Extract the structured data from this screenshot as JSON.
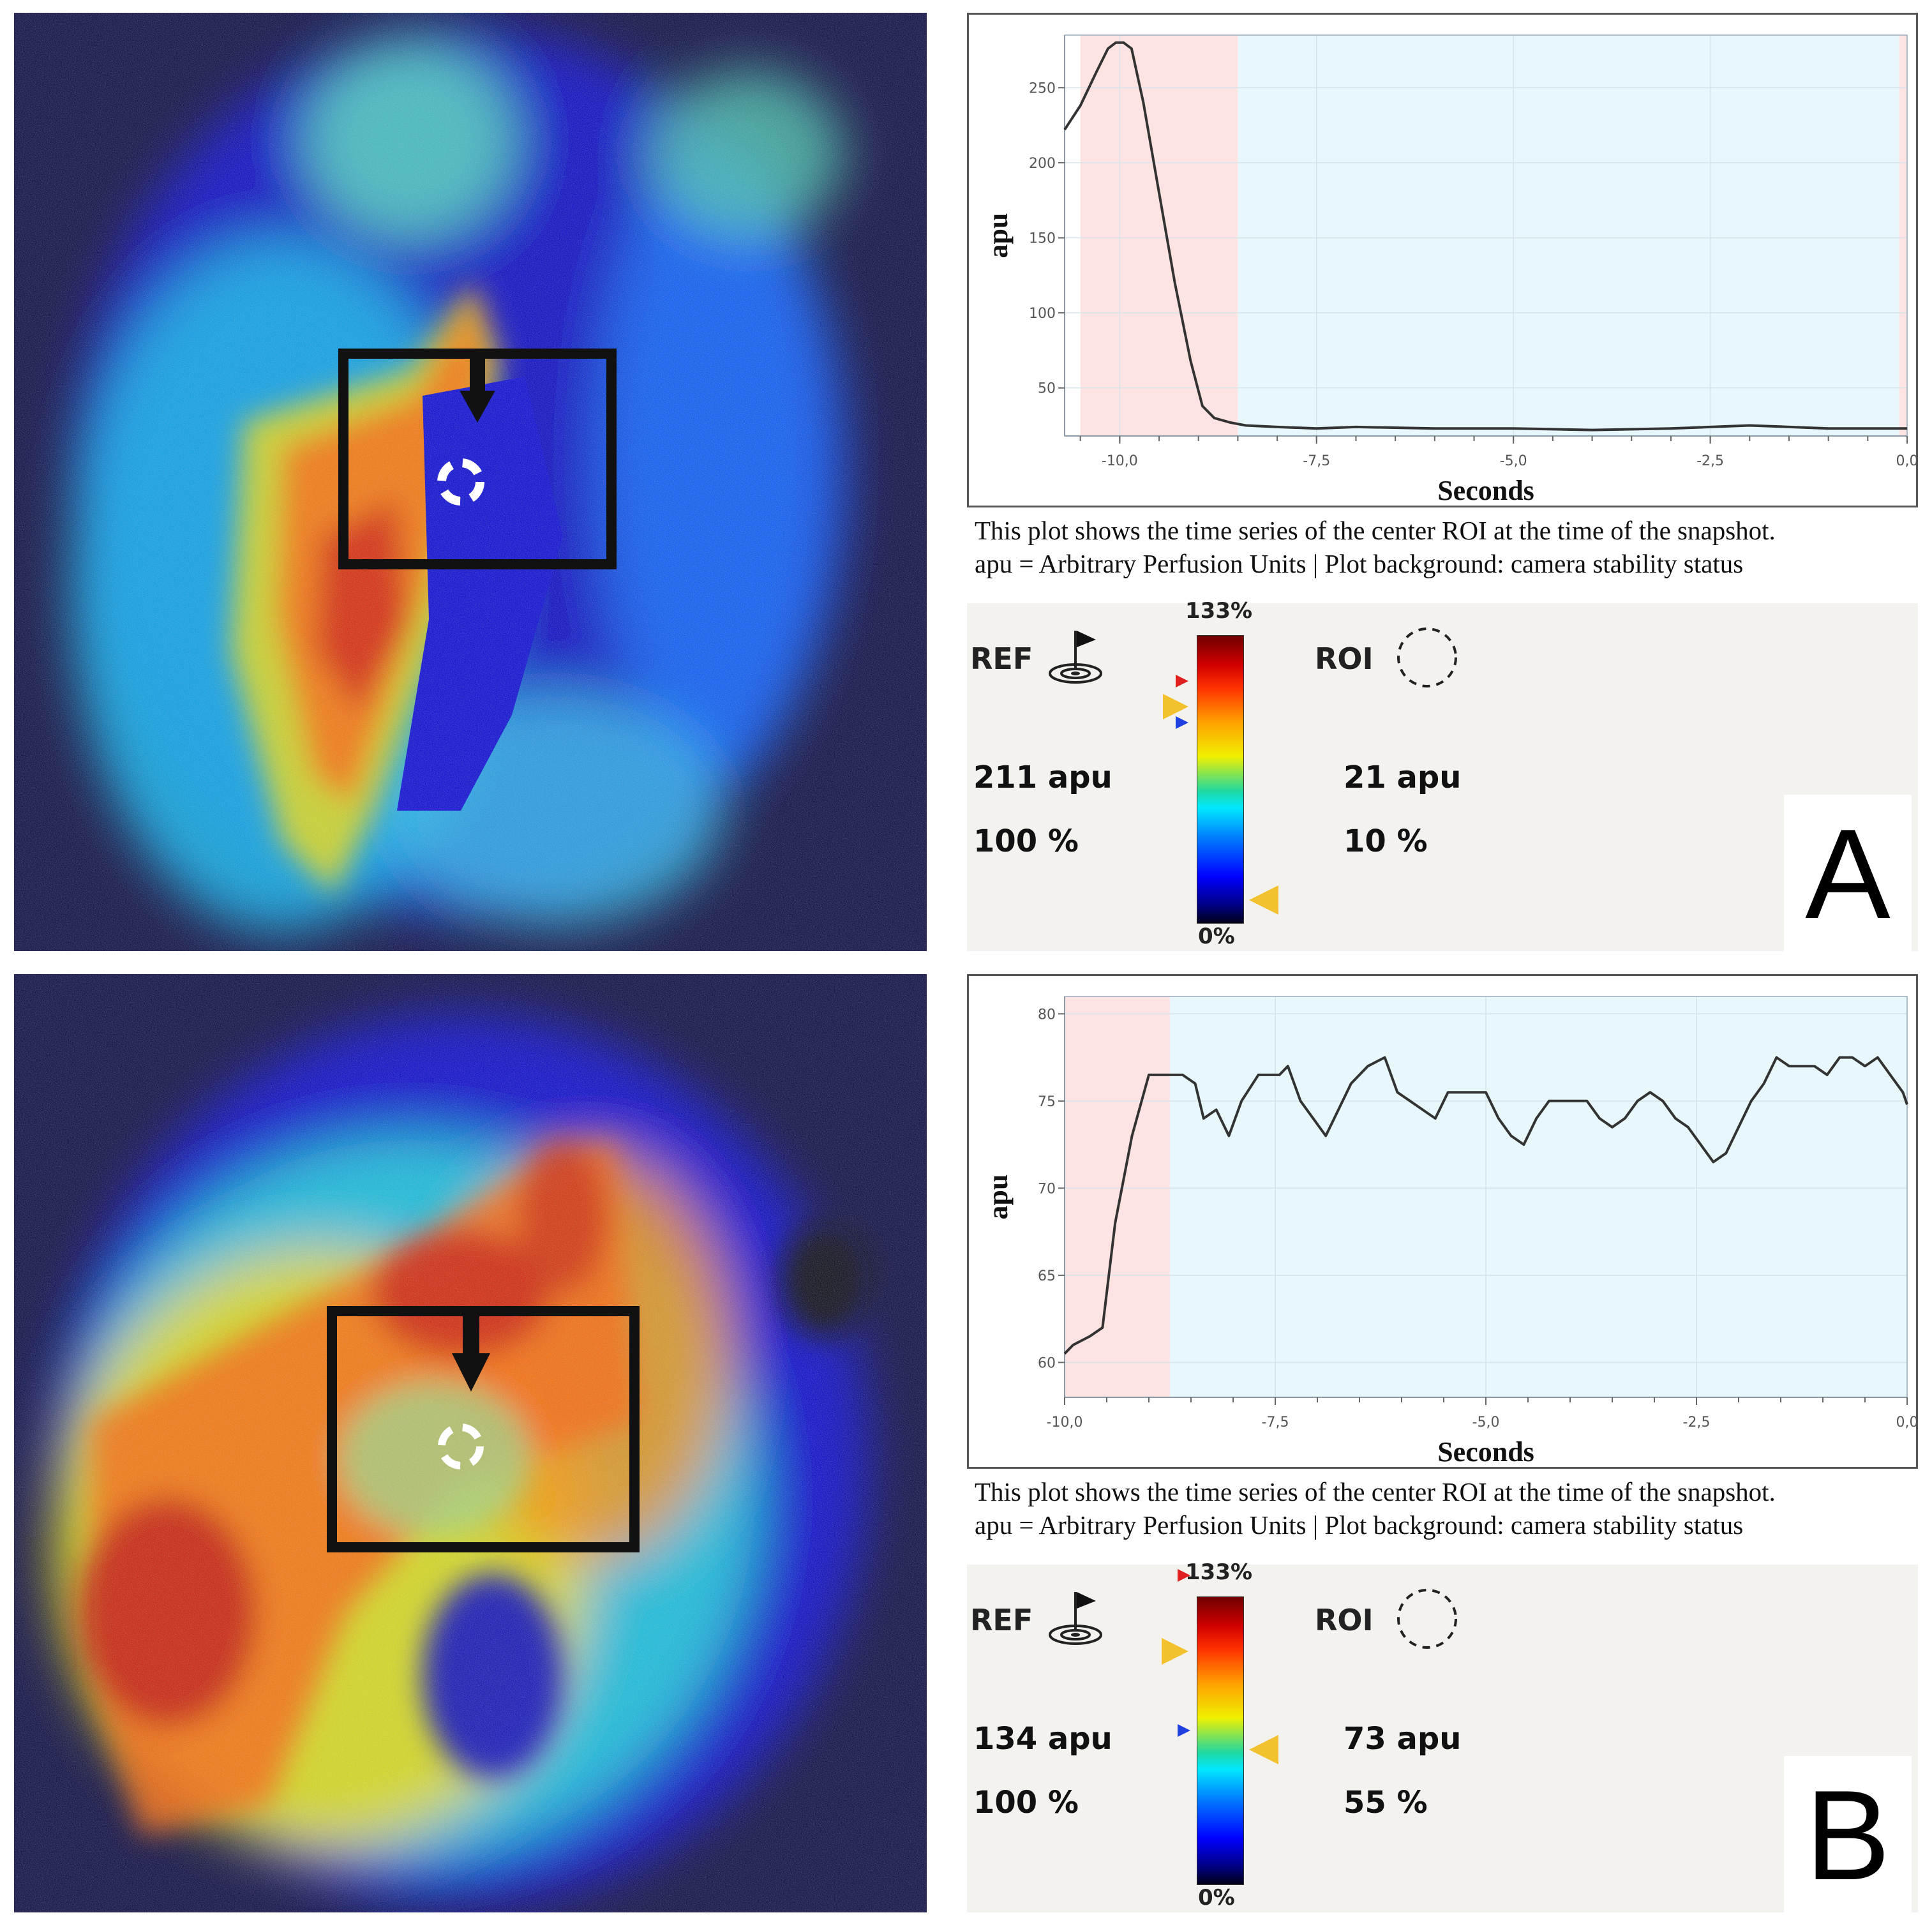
{
  "panels": {
    "a": {
      "letter": "A",
      "caption_line1": "This plot shows the time series of the center ROI at the time of the snapshot.",
      "caption_line2": "apu = Arbitrary Perfusion Units | Plot background: camera stability status",
      "ref_label": "REF",
      "roi_label": "ROI",
      "ref_apu": "211 apu",
      "ref_pct": "100 %",
      "roi_apu": "21 apu",
      "roi_pct": "10 %",
      "scale_max": "133%",
      "scale_min": "0%"
    },
    "b": {
      "letter": "B",
      "caption_line1": "This plot shows the time series of the center ROI at the time of the snapshot.",
      "caption_line2": "apu = Arbitrary Perfusion Units | Plot background: camera stability status",
      "ref_label": "REF",
      "roi_label": "ROI",
      "ref_apu": "134 apu",
      "ref_pct": "100 %",
      "roi_apu": "73 apu",
      "roi_pct": "55 %",
      "scale_max": "133%",
      "scale_min": "0%"
    }
  },
  "colors": {
    "unstable_bg": "#fde4e2",
    "stable_bg": "#e8f7fb",
    "line": "#333333",
    "marker_yellow": "#f2c12e",
    "marker_red": "#e02020",
    "marker_blue": "#2040e0"
  },
  "chart_data": [
    {
      "type": "line",
      "panel": "A",
      "xlabel": "Seconds",
      "ylabel": "apu",
      "xlim": [
        -10.7,
        0.0
      ],
      "ylim": [
        18,
        285
      ],
      "xticks": [
        -10.0,
        -7.5,
        -5.0,
        -2.5,
        0.0
      ],
      "xtick_labels": [
        "-10,0",
        "-7,5",
        "-5,0",
        "-2,5",
        "0,0"
      ],
      "yticks": [
        50,
        100,
        150,
        200,
        250
      ],
      "ytick_labels": [
        "50",
        "100",
        "150",
        "200",
        "250"
      ],
      "background_bands": [
        {
          "status": "unstable",
          "x0": -10.5,
          "x1": -8.5
        },
        {
          "status": "stable",
          "x0": -8.5,
          "x1": -0.1
        },
        {
          "status": "unstable",
          "x0": -0.1,
          "x1": 0.0
        }
      ],
      "x": [
        -10.7,
        -10.5,
        -10.3,
        -10.15,
        -10.05,
        -9.95,
        -9.85,
        -9.7,
        -9.5,
        -9.3,
        -9.1,
        -8.95,
        -8.8,
        -8.6,
        -8.4,
        -8.0,
        -7.5,
        -7.0,
        -6.0,
        -5.0,
        -4.0,
        -3.0,
        -2.5,
        -2.0,
        -1.0,
        0.0
      ],
      "y": [
        222,
        238,
        260,
        276,
        280,
        280,
        276,
        240,
        180,
        120,
        68,
        38,
        30,
        27,
        25,
        24,
        23,
        24,
        23,
        23,
        22,
        23,
        24,
        25,
        23,
        23
      ]
    },
    {
      "type": "line",
      "panel": "B",
      "xlabel": "Seconds",
      "ylabel": "apu",
      "xlim": [
        -10.0,
        0.0
      ],
      "ylim": [
        58,
        81
      ],
      "xticks": [
        -10.0,
        -7.5,
        -5.0,
        -2.5,
        0.0
      ],
      "xtick_labels": [
        "-10,0",
        "-7,5",
        "-5,0",
        "-2,5",
        "0,0"
      ],
      "yticks": [
        60,
        65,
        70,
        75,
        80
      ],
      "ytick_labels": [
        "60",
        "65",
        "70",
        "75",
        "80"
      ],
      "background_bands": [
        {
          "status": "unstable",
          "x0": -10.0,
          "x1": -8.75
        },
        {
          "status": "stable",
          "x0": -8.75,
          "x1": 0.0
        }
      ],
      "x": [
        -10.0,
        -9.9,
        -9.7,
        -9.55,
        -9.4,
        -9.2,
        -9.0,
        -8.9,
        -8.75,
        -8.6,
        -8.45,
        -8.35,
        -8.2,
        -8.05,
        -7.9,
        -7.7,
        -7.45,
        -7.35,
        -7.2,
        -7.05,
        -6.9,
        -6.75,
        -6.6,
        -6.4,
        -6.2,
        -6.05,
        -5.9,
        -5.75,
        -5.6,
        -5.45,
        -5.3,
        -5.15,
        -5.0,
        -4.85,
        -4.7,
        -4.55,
        -4.4,
        -4.25,
        -4.1,
        -3.95,
        -3.8,
        -3.65,
        -3.5,
        -3.35,
        -3.2,
        -3.05,
        -2.9,
        -2.75,
        -2.6,
        -2.45,
        -2.3,
        -2.15,
        -2.0,
        -1.85,
        -1.7,
        -1.55,
        -1.4,
        -1.25,
        -1.1,
        -0.95,
        -0.8,
        -0.65,
        -0.5,
        -0.35,
        -0.2,
        -0.05,
        0.0
      ],
      "y": [
        60.5,
        61.0,
        61.5,
        62.0,
        68.0,
        73.0,
        76.5,
        76.5,
        76.5,
        76.5,
        76.0,
        74.0,
        74.5,
        73.0,
        75.0,
        76.5,
        76.5,
        77.0,
        75.0,
        74.0,
        73.0,
        74.5,
        76.0,
        77.0,
        77.5,
        75.5,
        75.0,
        74.5,
        74.0,
        75.5,
        75.5,
        75.5,
        75.5,
        74.0,
        73.0,
        72.5,
        74.0,
        75.0,
        75.0,
        75.0,
        75.0,
        74.0,
        73.5,
        74.0,
        75.0,
        75.5,
        75.0,
        74.0,
        73.5,
        72.5,
        71.5,
        72.0,
        73.5,
        75.0,
        76.0,
        77.5,
        77.0,
        77.0,
        77.0,
        76.5,
        77.5,
        77.5,
        77.0,
        77.5,
        76.5,
        75.5,
        74.8
      ]
    }
  ]
}
